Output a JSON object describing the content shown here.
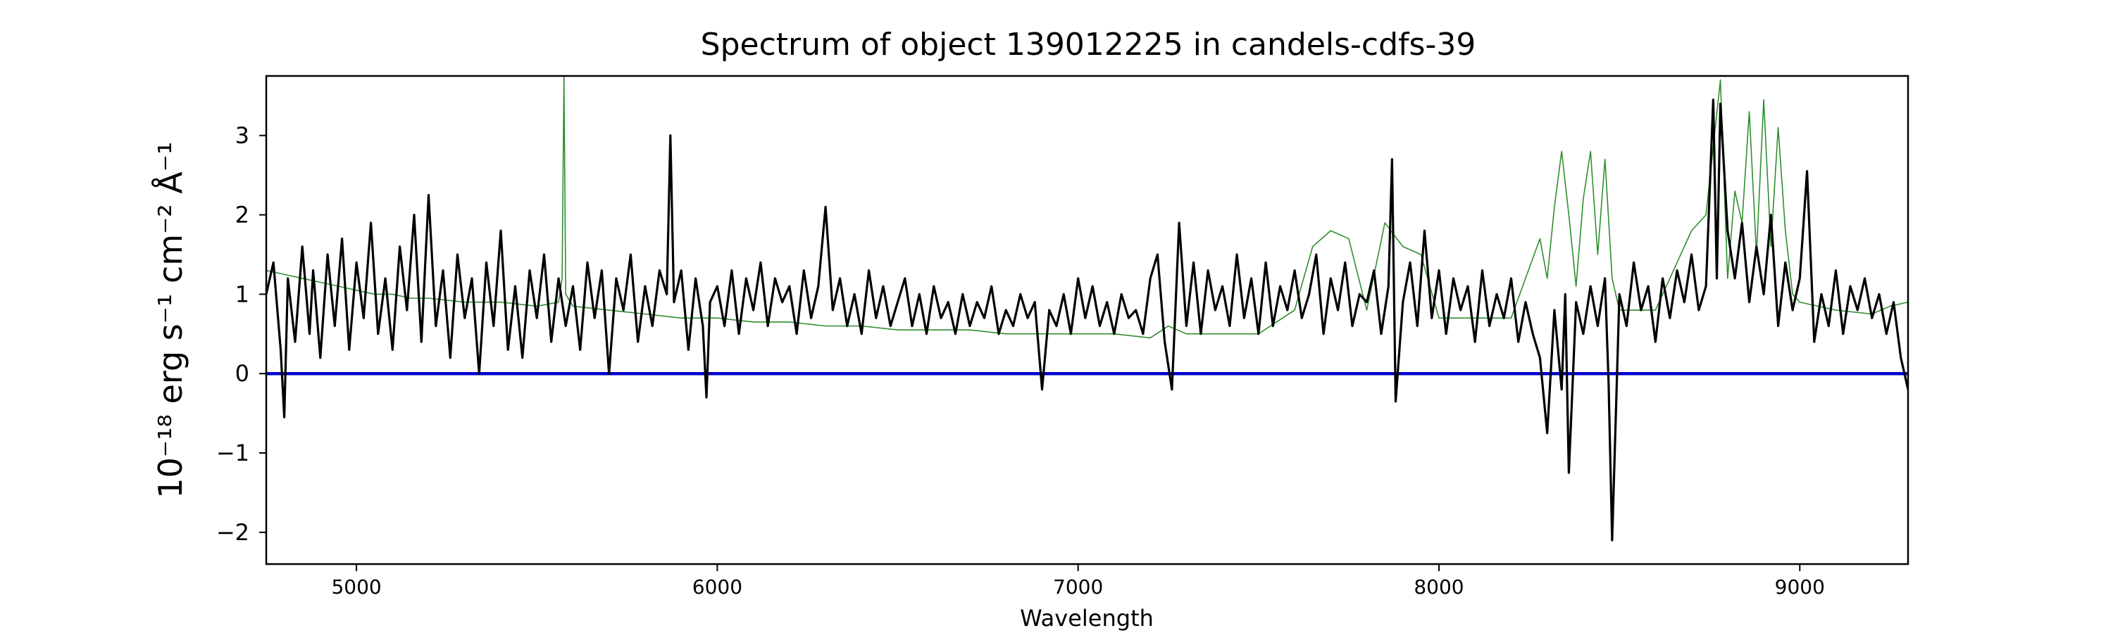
{
  "chart_data": {
    "type": "line",
    "title": "Spectrum of object 139012225 in candels-cdfs-39",
    "xlabel": "Wavelength",
    "ylabel": "10⁻¹⁸ erg s⁻¹ cm⁻² Å⁻¹",
    "xlim": [
      4750,
      9300
    ],
    "ylim": [
      -2.4,
      3.75
    ],
    "xticks": [
      5000,
      6000,
      7000,
      8000,
      9000
    ],
    "yticks": [
      -2,
      -1,
      0,
      1,
      2,
      3
    ],
    "grid": false,
    "legend": "none",
    "series": [
      {
        "role": "flux",
        "color": "#000000",
        "x": [
          4750,
          4770,
          4790,
          4800,
          4810,
          4830,
          4850,
          4870,
          4880,
          4900,
          4920,
          4940,
          4960,
          4980,
          5000,
          5020,
          5040,
          5060,
          5080,
          5100,
          5120,
          5140,
          5160,
          5180,
          5200,
          5220,
          5240,
          5260,
          5280,
          5300,
          5320,
          5340,
          5360,
          5380,
          5400,
          5420,
          5440,
          5460,
          5480,
          5500,
          5520,
          5540,
          5560,
          5580,
          5600,
          5620,
          5640,
          5660,
          5680,
          5700,
          5720,
          5740,
          5760,
          5780,
          5800,
          5820,
          5840,
          5860,
          5870,
          5880,
          5900,
          5920,
          5940,
          5960,
          5970,
          5980,
          6000,
          6020,
          6040,
          6060,
          6080,
          6100,
          6120,
          6140,
          6160,
          6180,
          6200,
          6220,
          6240,
          6260,
          6280,
          6300,
          6320,
          6340,
          6360,
          6380,
          6400,
          6420,
          6440,
          6460,
          6480,
          6500,
          6520,
          6540,
          6560,
          6580,
          6600,
          6620,
          6640,
          6660,
          6680,
          6700,
          6720,
          6740,
          6760,
          6780,
          6800,
          6820,
          6840,
          6860,
          6880,
          6900,
          6920,
          6940,
          6960,
          6980,
          7000,
          7020,
          7040,
          7060,
          7080,
          7100,
          7120,
          7140,
          7160,
          7180,
          7200,
          7220,
          7240,
          7260,
          7280,
          7300,
          7320,
          7340,
          7360,
          7380,
          7400,
          7420,
          7440,
          7460,
          7480,
          7500,
          7520,
          7540,
          7560,
          7580,
          7600,
          7620,
          7640,
          7660,
          7680,
          7700,
          7720,
          7740,
          7760,
          7780,
          7800,
          7820,
          7840,
          7860,
          7870,
          7880,
          7900,
          7920,
          7940,
          7960,
          7980,
          8000,
          8020,
          8040,
          8060,
          8080,
          8100,
          8120,
          8140,
          8160,
          8180,
          8200,
          8220,
          8240,
          8260,
          8280,
          8300,
          8320,
          8340,
          8350,
          8360,
          8380,
          8400,
          8420,
          8440,
          8460,
          8470,
          8480,
          8500,
          8520,
          8540,
          8560,
          8580,
          8600,
          8620,
          8640,
          8660,
          8680,
          8700,
          8720,
          8740,
          8760,
          8770,
          8780,
          8800,
          8820,
          8840,
          8860,
          8880,
          8900,
          8920,
          8940,
          8960,
          8980,
          9000,
          9020,
          9040,
          9060,
          9080,
          9100,
          9120,
          9140,
          9160,
          9180,
          9200,
          9220,
          9240,
          9260,
          9280,
          9300
        ],
        "y": [
          1.0,
          1.4,
          0.3,
          -0.55,
          1.2,
          0.4,
          1.6,
          0.5,
          1.3,
          0.2,
          1.5,
          0.6,
          1.7,
          0.3,
          1.4,
          0.7,
          1.9,
          0.5,
          1.2,
          0.3,
          1.6,
          0.8,
          2.0,
          0.4,
          2.25,
          0.6,
          1.3,
          0.2,
          1.5,
          0.7,
          1.2,
          0.0,
          1.4,
          0.6,
          1.8,
          0.3,
          1.1,
          0.2,
          1.3,
          0.7,
          1.5,
          0.4,
          1.2,
          0.6,
          1.1,
          0.3,
          1.4,
          0.7,
          1.3,
          0.0,
          1.2,
          0.8,
          1.5,
          0.4,
          1.1,
          0.6,
          1.3,
          1.0,
          3.0,
          0.9,
          1.3,
          0.3,
          1.2,
          0.6,
          -0.3,
          0.9,
          1.1,
          0.6,
          1.3,
          0.5,
          1.2,
          0.8,
          1.4,
          0.6,
          1.2,
          0.9,
          1.1,
          0.5,
          1.3,
          0.7,
          1.1,
          2.1,
          0.8,
          1.2,
          0.6,
          1.0,
          0.5,
          1.3,
          0.7,
          1.1,
          0.6,
          0.9,
          1.2,
          0.6,
          1.0,
          0.5,
          1.1,
          0.7,
          0.9,
          0.5,
          1.0,
          0.6,
          0.9,
          0.7,
          1.1,
          0.5,
          0.8,
          0.6,
          1.0,
          0.7,
          0.9,
          -0.2,
          0.8,
          0.6,
          1.0,
          0.5,
          1.2,
          0.7,
          1.1,
          0.6,
          0.9,
          0.5,
          1.0,
          0.7,
          0.8,
          0.5,
          1.2,
          1.5,
          0.4,
          -0.2,
          1.9,
          0.6,
          1.4,
          0.5,
          1.3,
          0.8,
          1.1,
          0.6,
          1.5,
          0.7,
          1.2,
          0.5,
          1.4,
          0.6,
          1.1,
          0.8,
          1.3,
          0.7,
          1.0,
          1.5,
          0.5,
          1.2,
          0.8,
          1.4,
          0.6,
          1.0,
          0.9,
          1.3,
          0.5,
          1.1,
          2.7,
          -0.35,
          0.9,
          1.4,
          0.6,
          1.8,
          0.7,
          1.3,
          0.5,
          1.2,
          0.8,
          1.1,
          0.4,
          1.3,
          0.6,
          1.0,
          0.7,
          1.2,
          0.4,
          0.9,
          0.5,
          0.2,
          -0.75,
          0.8,
          -0.2,
          1.0,
          -1.25,
          0.9,
          0.5,
          1.1,
          0.6,
          1.2,
          -0.1,
          -2.1,
          1.0,
          0.6,
          1.4,
          0.8,
          1.1,
          0.4,
          1.2,
          0.7,
          1.3,
          0.9,
          1.5,
          0.8,
          1.1,
          3.45,
          1.2,
          3.4,
          1.8,
          1.2,
          1.9,
          0.9,
          1.6,
          1.0,
          2.0,
          0.6,
          1.4,
          0.8,
          1.2,
          2.55,
          0.4,
          1.0,
          0.6,
          1.3,
          0.5,
          1.1,
          0.8,
          1.2,
          0.7,
          1.0,
          0.5,
          0.9,
          0.2,
          -0.2
        ]
      },
      {
        "role": "model",
        "color": "#2f8f2f",
        "x": [
          4750,
          4800,
          4850,
          4900,
          4950,
          5000,
          5050,
          5100,
          5150,
          5200,
          5300,
          5400,
          5500,
          5560,
          5570,
          5575,
          5580,
          5600,
          5700,
          5800,
          5900,
          6000,
          6100,
          6200,
          6300,
          6400,
          6500,
          6600,
          6700,
          6800,
          6900,
          7000,
          7100,
          7200,
          7250,
          7300,
          7400,
          7500,
          7600,
          7650,
          7700,
          7750,
          7800,
          7850,
          7900,
          7950,
          8000,
          8100,
          8200,
          8280,
          8300,
          8320,
          8340,
          8360,
          8380,
          8400,
          8420,
          8440,
          8460,
          8480,
          8500,
          8550,
          8600,
          8700,
          8740,
          8780,
          8800,
          8820,
          8840,
          8860,
          8880,
          8900,
          8920,
          8940,
          8960,
          8980,
          9000,
          9100,
          9200,
          9250,
          9300
        ],
        "y": [
          1.3,
          1.25,
          1.2,
          1.15,
          1.1,
          1.05,
          1.0,
          1.0,
          0.95,
          0.95,
          0.9,
          0.9,
          0.85,
          0.9,
          1.2,
          3.75,
          1.0,
          0.85,
          0.8,
          0.75,
          0.7,
          0.7,
          0.65,
          0.65,
          0.6,
          0.6,
          0.55,
          0.55,
          0.55,
          0.5,
          0.5,
          0.5,
          0.5,
          0.45,
          0.6,
          0.5,
          0.5,
          0.5,
          0.8,
          1.6,
          1.8,
          1.7,
          0.8,
          1.9,
          1.6,
          1.5,
          0.7,
          0.7,
          0.7,
          1.7,
          1.2,
          2.1,
          2.8,
          2.0,
          1.1,
          2.2,
          2.8,
          1.5,
          2.7,
          1.2,
          0.8,
          0.8,
          0.8,
          1.8,
          2.0,
          3.7,
          1.2,
          2.3,
          1.9,
          3.3,
          1.5,
          3.45,
          1.6,
          3.1,
          1.8,
          1.0,
          0.9,
          0.8,
          0.75,
          0.85,
          0.9
        ]
      },
      {
        "role": "zero-level",
        "color": "#0000cc",
        "x": [
          4750,
          9300
        ],
        "y": [
          0,
          0
        ]
      }
    ]
  }
}
